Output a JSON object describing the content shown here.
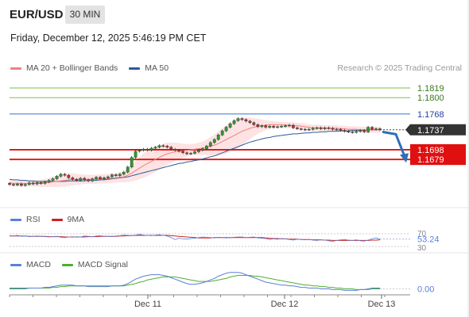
{
  "header": {
    "symbol": "EUR/USD",
    "timeframe": "30 MIN",
    "datetime": "Friday, December 12, 2025 5:46:19 PM CET",
    "credit": "Research © 2025 Trading Central"
  },
  "colors": {
    "ma20": "#f08080",
    "bollinger_fill": "#fde0e0",
    "ma50": "#2c5a9a",
    "resistance_green": "#7cbf4a",
    "resistance_blue": "#4d7fdc",
    "support_red": "#e01010",
    "candle_up": "#2f9a2f",
    "candle_down": "#c23030",
    "rsi": "#5a7fd6",
    "rsi_ma": "#d02020",
    "macd": "#5a7fd6",
    "macd_signal": "#4caf30",
    "current_price_bg": "#333333",
    "arrow": "#2d6fb8"
  },
  "legends": {
    "price": [
      {
        "label": "MA 20 + Bollinger Bands",
        "color": "#f08080"
      },
      {
        "label": "MA 50",
        "color": "#2c5a9a"
      }
    ],
    "rsi": [
      {
        "label": "RSI",
        "color": "#5a7fd6"
      },
      {
        "label": "9MA",
        "color": "#d02020"
      }
    ],
    "macd": [
      {
        "label": "MACD",
        "color": "#5a7fd6"
      },
      {
        "label": "MACD Signal",
        "color": "#4caf30"
      }
    ]
  },
  "chart_data": [
    {
      "type": "candlestick",
      "ylim": [
        1.1597,
        1.1836
      ],
      "x_tick_labels": [
        "Dec 11",
        "Dec 12",
        "Dec 13"
      ],
      "levels": [
        {
          "value": 1.1819,
          "label": "1.1819",
          "kind": "resistance"
        },
        {
          "value": 1.18,
          "label": "1.1800",
          "kind": "resistance"
        },
        {
          "value": 1.1768,
          "label": "1.1768",
          "kind": "pivot"
        },
        {
          "value": 1.1698,
          "label": "1.1698",
          "kind": "support"
        },
        {
          "value": 1.1679,
          "label": "1.1679",
          "kind": "support"
        }
      ],
      "current_price": {
        "value": 1.1737,
        "label": "1.1737"
      },
      "forecast": {
        "from": 1.1733,
        "to": 1.1685,
        "direction": "down"
      },
      "closes": [
        1.163,
        1.1629,
        1.1631,
        1.1628,
        1.163,
        1.1633,
        1.1631,
        1.1634,
        1.1632,
        1.1635,
        1.1638,
        1.1641,
        1.1646,
        1.165,
        1.1648,
        1.1643,
        1.164,
        1.1638,
        1.1642,
        1.1639,
        1.1637,
        1.1641,
        1.1644,
        1.1641,
        1.1643,
        1.1645,
        1.1649,
        1.1647,
        1.165,
        1.1654,
        1.1664,
        1.1683,
        1.1695,
        1.1697,
        1.1699,
        1.1697,
        1.1701,
        1.1703,
        1.1706,
        1.1705,
        1.1703,
        1.1699,
        1.1697,
        1.1695,
        1.1692,
        1.169,
        1.1691,
        1.1694,
        1.1697,
        1.17,
        1.1705,
        1.1712,
        1.1718,
        1.1727,
        1.1735,
        1.1742,
        1.1749,
        1.1755,
        1.1759,
        1.1757,
        1.1754,
        1.1751,
        1.1747,
        1.1743,
        1.1745,
        1.1742,
        1.1744,
        1.1742,
        1.1743,
        1.1744,
        1.1745,
        1.1746,
        1.1741,
        1.1739,
        1.1738,
        1.1737,
        1.1738,
        1.174,
        1.1741,
        1.1739,
        1.1741,
        1.174,
        1.1738,
        1.1738,
        1.1736,
        1.1734,
        1.1733,
        1.1732,
        1.1734,
        1.1736,
        1.1733,
        1.1742,
        1.1738,
        1.1739,
        1.1737
      ],
      "ma20": [
        1.1633,
        1.1632,
        1.1632,
        1.1632,
        1.1632,
        1.1632,
        1.1632,
        1.1632,
        1.1632,
        1.1633,
        1.1634,
        1.1635,
        1.1636,
        1.1637,
        1.1638,
        1.1639,
        1.164,
        1.164,
        1.164,
        1.164,
        1.164,
        1.164,
        1.164,
        1.1641,
        1.1641,
        1.1642,
        1.1642,
        1.1643,
        1.1644,
        1.1645,
        1.1648,
        1.1652,
        1.1657,
        1.1662,
        1.1667,
        1.1671,
        1.1675,
        1.1679,
        1.1683,
        1.1687,
        1.169,
        1.1692,
        1.1694,
        1.1695,
        1.1696,
        1.1697,
        1.1698,
        1.1699,
        1.17,
        1.1701,
        1.1703,
        1.1705,
        1.1707,
        1.171,
        1.1714,
        1.1718,
        1.1722,
        1.1726,
        1.173,
        1.1734,
        1.1737,
        1.174,
        1.1742,
        1.1744,
        1.1745,
        1.1746,
        1.1747,
        1.1747,
        1.1747,
        1.1747,
        1.1746,
        1.1746,
        1.1745,
        1.1745,
        1.1744,
        1.1743,
        1.1742,
        1.1741,
        1.1741,
        1.1741,
        1.174,
        1.174,
        1.174,
        1.174,
        1.1739,
        1.1739,
        1.1738,
        1.1738,
        1.1738,
        1.1737,
        1.1737,
        1.1737,
        1.1737,
        1.1737,
        1.1737
      ],
      "band_width": [
        0.0006,
        0.0006,
        0.0006,
        0.0006,
        0.0006,
        0.0006,
        0.0006,
        0.0006,
        0.0007,
        0.0008,
        0.0009,
        0.001,
        0.0011,
        0.0012,
        0.0012,
        0.0012,
        0.0012,
        0.0011,
        0.001,
        0.0009,
        0.0009,
        0.0009,
        0.0009,
        0.0009,
        0.0009,
        0.0009,
        0.0009,
        0.0009,
        0.001,
        0.0011,
        0.0013,
        0.0016,
        0.0019,
        0.0022,
        0.0024,
        0.0025,
        0.0025,
        0.0025,
        0.0024,
        0.0023,
        0.0022,
        0.002,
        0.0018,
        0.0016,
        0.0014,
        0.0012,
        0.0011,
        0.0011,
        0.0012,
        0.0013,
        0.0015,
        0.0018,
        0.0021,
        0.0024,
        0.0026,
        0.0028,
        0.0029,
        0.0029,
        0.0028,
        0.0026,
        0.0024,
        0.0021,
        0.0018,
        0.0015,
        0.0012,
        0.001,
        0.0008,
        0.0007,
        0.0006,
        0.0006,
        0.0006,
        0.0006,
        0.0006,
        0.0006,
        0.0006,
        0.0006,
        0.0006,
        0.0006,
        0.0006,
        0.0006,
        0.0006,
        0.0006,
        0.0006,
        0.0006,
        0.0006,
        0.0006,
        0.0006,
        0.0006,
        0.0006,
        0.0006,
        0.0006,
        0.0006,
        0.0006,
        0.0006,
        0.0006
      ],
      "ma50": [
        1.164,
        1.1639,
        1.1639,
        1.1638,
        1.1638,
        1.1637,
        1.1637,
        1.1636,
        1.1636,
        1.1636,
        1.1636,
        1.1636,
        1.1636,
        1.1636,
        1.1636,
        1.1637,
        1.1637,
        1.1637,
        1.1637,
        1.1637,
        1.1638,
        1.1638,
        1.1638,
        1.1639,
        1.1639,
        1.164,
        1.1641,
        1.1642,
        1.1643,
        1.1644,
        1.1645,
        1.1647,
        1.1649,
        1.1651,
        1.1653,
        1.1655,
        1.1657,
        1.1659,
        1.1661,
        1.1663,
        1.1665,
        1.1667,
        1.1669,
        1.1671,
        1.1672,
        1.1674,
        1.1675,
        1.1677,
        1.1678,
        1.168,
        1.1682,
        1.1684,
        1.1686,
        1.1689,
        1.1692,
        1.1695,
        1.1698,
        1.1701,
        1.1704,
        1.1707,
        1.171,
        1.1713,
        1.1715,
        1.1717,
        1.1719,
        1.1721,
        1.1722,
        1.1724,
        1.1725,
        1.1726,
        1.1727,
        1.1728,
        1.1729,
        1.1729,
        1.173,
        1.1731,
        1.1731,
        1.1732,
        1.1732,
        1.1733,
        1.1733,
        1.1734,
        1.1734,
        1.1734,
        1.1735,
        1.1735,
        1.1735,
        1.1736,
        1.1736,
        1.1736,
        1.1736,
        1.1737,
        1.1737,
        1.1737,
        1.1737
      ]
    },
    {
      "type": "line",
      "name": "RSI",
      "ylim": [
        30,
        70
      ],
      "y_tick_labels": [
        "70",
        "30"
      ],
      "current": {
        "value": 53.24,
        "label": "53.24"
      },
      "rsi": [
        64,
        63,
        65,
        62,
        63,
        61,
        62,
        63,
        62,
        61,
        60,
        61,
        62,
        59,
        58,
        60,
        59,
        61,
        60,
        63,
        62,
        61,
        63,
        64,
        62,
        62,
        61,
        63,
        64,
        66,
        65,
        64,
        66,
        68,
        66,
        65,
        64,
        66,
        67,
        65,
        63,
        58,
        52,
        56,
        54,
        53,
        55,
        56,
        58,
        60,
        59,
        58,
        57,
        59,
        58,
        57,
        58,
        59,
        60,
        60,
        58,
        59,
        60,
        57,
        56,
        55,
        52,
        54,
        53,
        55,
        54,
        52,
        50,
        53,
        52,
        51,
        52,
        50,
        49,
        51,
        50,
        48,
        46,
        49,
        51,
        52,
        50,
        49,
        51,
        48,
        47,
        50,
        54,
        57,
        53
      ],
      "rsi_ma": [
        63,
        63,
        63,
        63,
        63,
        62,
        62,
        62,
        62,
        62,
        61,
        61,
        61,
        61,
        60,
        60,
        60,
        60,
        60,
        60,
        61,
        61,
        61,
        62,
        62,
        62,
        62,
        62,
        63,
        63,
        64,
        64,
        65,
        65,
        65,
        65,
        65,
        65,
        65,
        65,
        65,
        64,
        63,
        62,
        61,
        60,
        59,
        58,
        57,
        57,
        57,
        57,
        58,
        58,
        58,
        58,
        58,
        58,
        58,
        58,
        58,
        58,
        58,
        58,
        58,
        57,
        56,
        55,
        55,
        54,
        54,
        53,
        53,
        53,
        52,
        52,
        52,
        51,
        51,
        51,
        50,
        50,
        49,
        49,
        49,
        49,
        49,
        49,
        49,
        49,
        49,
        49,
        50,
        50,
        51
      ]
    },
    {
      "type": "line",
      "name": "MACD",
      "ylim": [
        -0.0008,
        0.0026
      ],
      "y_tick_labels": [
        "0.00"
      ],
      "macd": [
        0.0,
        0.0,
        0.0,
        0.0,
        0.0,
        0.0001,
        0.0001,
        0.0001,
        0.0001,
        0.0002,
        0.0002,
        0.0003,
        0.0004,
        0.0005,
        0.0005,
        0.0005,
        0.0005,
        0.0004,
        0.0004,
        0.0004,
        0.0003,
        0.0003,
        0.0003,
        0.0003,
        0.0003,
        0.0003,
        0.0004,
        0.0004,
        0.0004,
        0.0005,
        0.0007,
        0.001,
        0.0013,
        0.0015,
        0.0017,
        0.0018,
        0.0019,
        0.0019,
        0.0019,
        0.0018,
        0.0017,
        0.0015,
        0.0013,
        0.0011,
        0.0009,
        0.0007,
        0.0006,
        0.0006,
        0.0007,
        0.0008,
        0.001,
        0.0012,
        0.0014,
        0.0017,
        0.0019,
        0.0021,
        0.0022,
        0.0022,
        0.0022,
        0.0021,
        0.0019,
        0.0017,
        0.0015,
        0.0013,
        0.0011,
        0.0009,
        0.0008,
        0.0007,
        0.0006,
        0.0005,
        0.0005,
        0.0004,
        0.0004,
        0.0003,
        0.0002,
        0.0002,
        0.0001,
        0.0001,
        0.0001,
        0.0,
        0.0,
        0.0,
        -0.0001,
        -0.0001,
        -0.0001,
        -0.0002,
        -0.0002,
        -0.0002,
        -0.0002,
        -0.0001,
        -0.0001,
        0.0,
        0.0001,
        0.0001,
        0.0001
      ],
      "signal": [
        0.0001,
        0.0001,
        0.0001,
        0.0001,
        0.0001,
        0.0001,
        0.0001,
        0.0001,
        0.0001,
        0.0001,
        0.0001,
        0.0002,
        0.0002,
        0.0003,
        0.0003,
        0.0004,
        0.0004,
        0.0004,
        0.0004,
        0.0004,
        0.0004,
        0.0004,
        0.0004,
        0.0004,
        0.0004,
        0.0004,
        0.0004,
        0.0004,
        0.0004,
        0.0004,
        0.0005,
        0.0006,
        0.0007,
        0.0009,
        0.001,
        0.0012,
        0.0013,
        0.0014,
        0.0015,
        0.0016,
        0.0016,
        0.0016,
        0.0016,
        0.0015,
        0.0014,
        0.0013,
        0.0012,
        0.0011,
        0.001,
        0.001,
        0.001,
        0.001,
        0.0011,
        0.0012,
        0.0013,
        0.0014,
        0.0016,
        0.0017,
        0.0018,
        0.0018,
        0.0018,
        0.0018,
        0.0017,
        0.0017,
        0.0016,
        0.0015,
        0.0014,
        0.0013,
        0.0012,
        0.0011,
        0.001,
        0.0009,
        0.0008,
        0.0007,
        0.0006,
        0.0005,
        0.0005,
        0.0004,
        0.0004,
        0.0003,
        0.0003,
        0.0002,
        0.0002,
        0.0001,
        0.0001,
        0.0,
        0.0,
        0.0,
        -0.0001,
        -0.0001,
        -0.0001,
        -0.0001,
        0.0,
        0.0,
        0.0
      ]
    }
  ]
}
